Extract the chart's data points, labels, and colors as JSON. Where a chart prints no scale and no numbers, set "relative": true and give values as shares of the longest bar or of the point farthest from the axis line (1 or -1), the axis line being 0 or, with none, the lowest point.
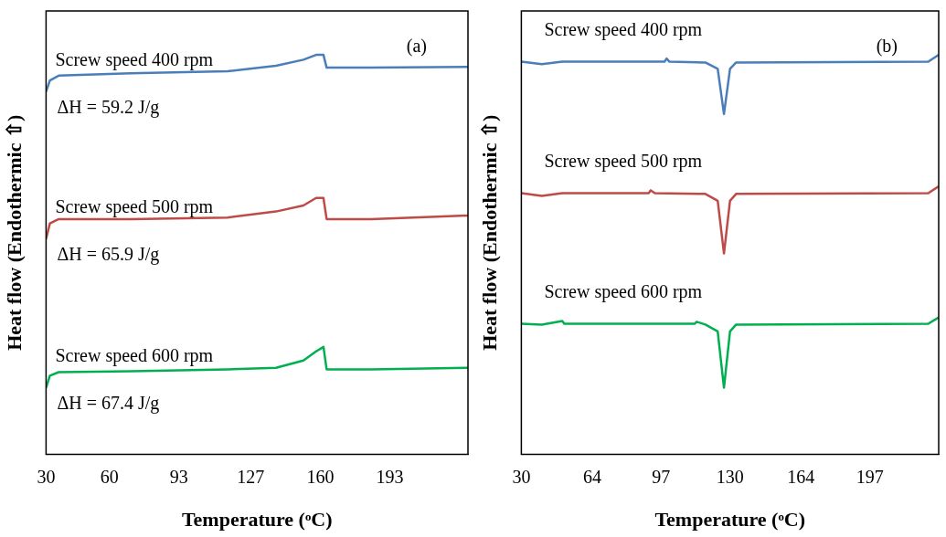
{
  "chart_data": [
    {
      "type": "line",
      "relative": true,
      "xlabel": "Temperature (ᵒC)",
      "ylabel": "Heat flow (Endothermic ⇧)",
      "xlim": [
        30,
        230
      ],
      "xticks": [
        30,
        60,
        93,
        127,
        160,
        193
      ],
      "tick_labels": "x",
      "grid": false,
      "legend": false,
      "series": [
        {
          "name": "Screw speed 400 rpm",
          "color": "#4a7ebb",
          "x": [
            30,
            31.8,
            36,
            70,
            116,
            139,
            152,
            158,
            161.5,
            163,
            184,
            230
          ],
          "values": [
            0.908,
            0.936,
            0.948,
            0.954,
            0.959,
            0.973,
            0.988,
            1,
            1,
            0.968,
            0.968,
            0.97
          ]
        },
        {
          "name": "Screw speed 500 rpm",
          "color": "#be4b48",
          "x": [
            30,
            31.8,
            36,
            70,
            116,
            139,
            152,
            158,
            161.5,
            163,
            184,
            230
          ],
          "values": [
            0.539,
            0.578,
            0.589,
            0.589,
            0.593,
            0.608,
            0.623,
            0.642,
            0.642,
            0.589,
            0.589,
            0.598
          ]
        },
        {
          "name": "Screw speed 600 rpm",
          "color": "#00b050",
          "x": [
            30,
            31.8,
            36,
            70,
            116,
            139,
            152,
            158,
            161.5,
            163,
            184,
            230
          ],
          "values": [
            0.167,
            0.197,
            0.206,
            0.208,
            0.213,
            0.217,
            0.235,
            0.258,
            0.269,
            0.213,
            0.213,
            0.217
          ]
        }
      ],
      "annotations": [
        "(a)",
        "ΔH = 59.2 J/g",
        "ΔH = 65.9 J/g",
        "ΔH = 67.4 J/g"
      ]
    },
    {
      "type": "line",
      "relative": true,
      "xlabel": "Temperature (ᵒC)",
      "ylabel": "Heat flow (Endothermic ⇧)",
      "xlim": [
        30,
        230
      ],
      "xticks": [
        30,
        64,
        97,
        130,
        164,
        197
      ],
      "tick_labels": "x",
      "grid": false,
      "legend": false,
      "series": [
        {
          "name": "Screw speed 400 rpm",
          "color": "#4a7ebb",
          "x": [
            30,
            39.8,
            49.6,
            98.6,
            99.6,
            101,
            118.2,
            124.1,
            127.1,
            130,
            132.9,
            225,
            230
          ],
          "values": [
            0.983,
            0.977,
            0.983,
            0.983,
            0.991,
            0.983,
            0.981,
            0.965,
            0.852,
            0.965,
            0.981,
            0.983,
            1
          ]
        },
        {
          "name": "Screw speed 500 rpm",
          "color": "#be4b48",
          "x": [
            30,
            39.8,
            49.6,
            91,
            92,
            94,
            118.2,
            124.1,
            127.1,
            130,
            132.9,
            225,
            230
          ],
          "values": [
            0.654,
            0.647,
            0.654,
            0.654,
            0.661,
            0.654,
            0.652,
            0.635,
            0.503,
            0.635,
            0.652,
            0.654,
            0.671
          ]
        },
        {
          "name": "Screw speed 600 rpm",
          "color": "#00b050",
          "x": [
            30,
            39.8,
            49.6,
            50.6,
            82,
            113,
            114,
            118.2,
            124.1,
            127.1,
            130,
            132.9,
            225,
            230
          ],
          "values": [
            0.327,
            0.325,
            0.334,
            0.327,
            0.327,
            0.327,
            0.332,
            0.325,
            0.308,
            0.167,
            0.308,
            0.325,
            0.327,
            0.343
          ]
        }
      ],
      "annotations": [
        "(b)"
      ]
    }
  ]
}
